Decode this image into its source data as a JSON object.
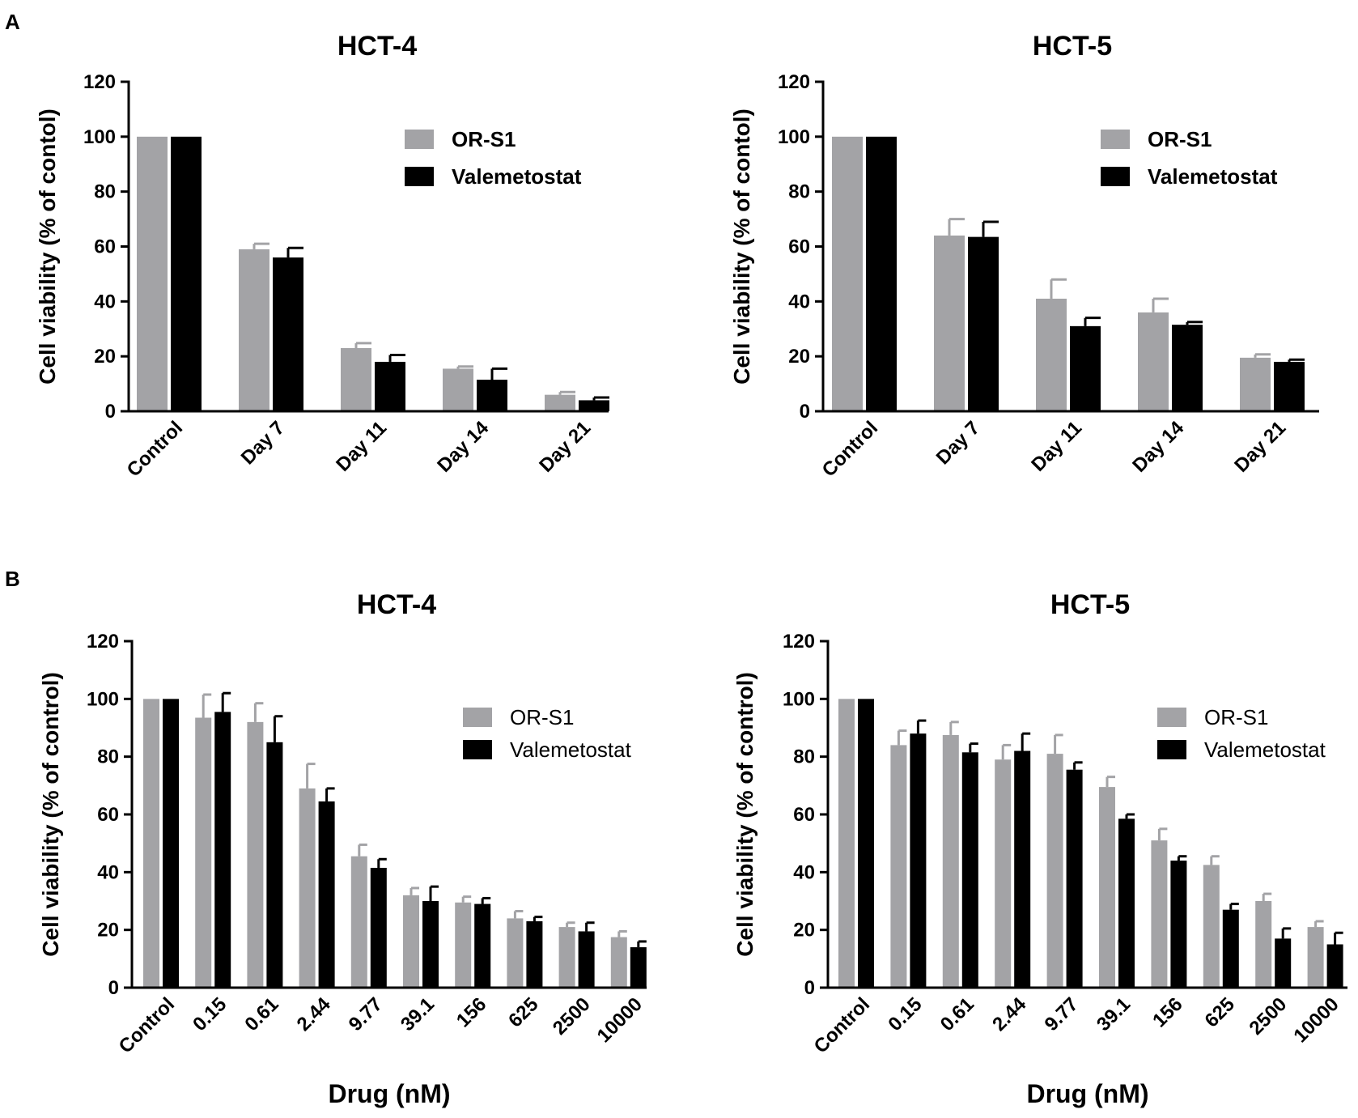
{
  "panel_labels": [
    "A",
    "B"
  ],
  "colors": {
    "or_s1": "#a3a3a6",
    "valemetostat": "#000000"
  },
  "chart_data": [
    {
      "panel": "A",
      "type": "bar",
      "title": "HCT-4",
      "ylabel": "Cell viability (% of contol)",
      "xlabel": "",
      "ylim": [
        0,
        120
      ],
      "yticks": [
        0,
        20,
        40,
        60,
        80,
        100,
        120
      ],
      "categories": [
        "Control",
        "Day 7",
        "Day 11",
        "Day 14",
        "Day 21"
      ],
      "legend": {
        "placement": "top-right"
      },
      "series": [
        {
          "name": "OR-S1",
          "color_key": "or_s1",
          "values": [
            100,
            59,
            23,
            15.5,
            6
          ],
          "errors": [
            0,
            2,
            1.8,
            0.8,
            1
          ]
        },
        {
          "name": "Valemetostat",
          "color_key": "valemetostat",
          "values": [
            100,
            56,
            18,
            11.5,
            4
          ],
          "errors": [
            0,
            3.5,
            2.5,
            4,
            1
          ]
        }
      ]
    },
    {
      "panel": "A",
      "type": "bar",
      "title": "HCT-5",
      "ylabel": "Cell viability (% of contol)",
      "xlabel": "",
      "ylim": [
        0,
        120
      ],
      "yticks": [
        0,
        20,
        40,
        60,
        80,
        100,
        120
      ],
      "categories": [
        "Control",
        "Day 7",
        "Day 11",
        "Day 14",
        "Day 21"
      ],
      "legend": {
        "placement": "top-right"
      },
      "series": [
        {
          "name": "OR-S1",
          "color_key": "or_s1",
          "values": [
            100,
            64,
            41,
            36,
            19.5
          ],
          "errors": [
            0,
            6,
            7,
            5,
            1.2
          ]
        },
        {
          "name": "Valemetostat",
          "color_key": "valemetostat",
          "values": [
            100,
            63.5,
            31,
            31.5,
            18
          ],
          "errors": [
            0,
            5.5,
            3,
            1,
            0.8
          ]
        }
      ]
    },
    {
      "panel": "B",
      "type": "bar",
      "title": "HCT-4",
      "ylabel": "Cell viability (% of control)",
      "xlabel": "Drug (nM)",
      "ylim": [
        0,
        120
      ],
      "yticks": [
        0,
        20,
        40,
        60,
        80,
        100,
        120
      ],
      "categories": [
        "Control",
        "0.15",
        "0.61",
        "2.44",
        "9.77",
        "39.1",
        "156",
        "625",
        "2500",
        "10000"
      ],
      "legend": {
        "placement": "right"
      },
      "series": [
        {
          "name": "OR-S1",
          "color_key": "or_s1",
          "values": [
            100,
            93.5,
            92,
            69,
            45.5,
            32,
            29.5,
            24,
            21,
            17.5
          ],
          "errors": [
            0,
            8,
            6.5,
            8.5,
            4,
            2.5,
            2,
            2.5,
            1.5,
            2
          ]
        },
        {
          "name": "Valemetostat",
          "color_key": "valemetostat",
          "values": [
            100,
            95.5,
            85,
            64.5,
            41.5,
            30,
            29,
            23,
            19.5,
            14
          ],
          "errors": [
            0,
            6.5,
            9,
            4.5,
            3,
            5,
            2,
            1.5,
            3,
            2
          ]
        }
      ]
    },
    {
      "panel": "B",
      "type": "bar",
      "title": "HCT-5",
      "ylabel": "Cell viability (% of control)",
      "xlabel": "Drug (nM)",
      "ylim": [
        0,
        120
      ],
      "yticks": [
        0,
        20,
        40,
        60,
        80,
        100,
        120
      ],
      "categories": [
        "Control",
        "0.15",
        "0.61",
        "2.44",
        "9.77",
        "39.1",
        "156",
        "625",
        "2500",
        "10000"
      ],
      "legend": {
        "placement": "right"
      },
      "series": [
        {
          "name": "OR-S1",
          "color_key": "or_s1",
          "values": [
            100,
            84,
            87.5,
            79,
            81,
            69.5,
            51,
            42.5,
            30,
            21
          ],
          "errors": [
            0,
            5,
            4.5,
            5,
            6.5,
            3.5,
            4,
            3,
            2.5,
            2
          ]
        },
        {
          "name": "Valemetostat",
          "color_key": "valemetostat",
          "values": [
            100,
            88,
            81.5,
            82,
            75.5,
            58.5,
            44,
            27,
            17,
            15
          ],
          "errors": [
            0,
            4.5,
            3,
            6,
            2.5,
            1.5,
            1.5,
            2,
            3.5,
            4
          ]
        }
      ]
    }
  ]
}
